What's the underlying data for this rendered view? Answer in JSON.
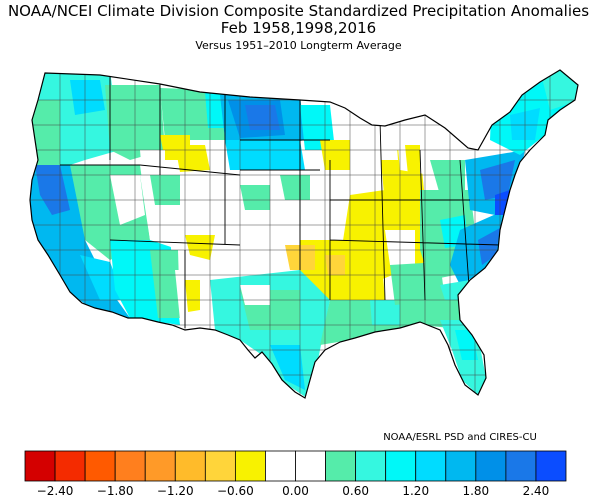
{
  "title": "NOAA/NCEI Climate Division Composite Standardized Precipitation Anomalies",
  "subtitle": "Feb   1958,1998,2016",
  "subtitle2": "Versus 1951–2010 Longterm Average",
  "credit": "NOAA/ESRL PSD and CIRES-CU",
  "legend": {
    "colors": [
      "#d40000",
      "#f42b00",
      "#ff5a00",
      "#ff7f1e",
      "#ff9a28",
      "#ffbb2a",
      "#ffd53a",
      "#f8f200",
      "#ffffff",
      "#ffffff",
      "#55ecaa",
      "#35f7e0",
      "#00f8f8",
      "#00dcff",
      "#00b8f0",
      "#0090e8",
      "#1a78e8",
      "#0b4dff"
    ],
    "ticks": [
      "−2.40",
      "−1.80",
      "−1.20",
      "−0.60",
      "0.00",
      "0.60",
      "1.20",
      "1.80",
      "2.40"
    ]
  },
  "map": {
    "region": "Contiguous United States",
    "wet_regions": [
      {
        "name": "pacific-northwest",
        "level": "0.6-1.2"
      },
      {
        "name": "california-coast",
        "level": "1.8-2.4"
      },
      {
        "name": "northern-plains",
        "level": "1.8-2.4+"
      },
      {
        "name": "southeast-coast",
        "level": "1.2-2.4"
      },
      {
        "name": "mid-atlantic",
        "level": "1.8-2.4"
      },
      {
        "name": "new-england",
        "level": "0.6-1.2"
      },
      {
        "name": "texas",
        "level": "0.6-1.2"
      },
      {
        "name": "florida",
        "level": "0.6-1.2"
      },
      {
        "name": "gulf-coast",
        "level": "0.6-1.2"
      }
    ],
    "dry_regions": [
      {
        "name": "midwest",
        "level": "-0.6-0"
      },
      {
        "name": "oklahoma-arkansas",
        "level": "-0.6-0"
      },
      {
        "name": "montana-wyoming",
        "level": "-0.6-0"
      },
      {
        "name": "southwest-patches",
        "level": "-0.6-0"
      }
    ]
  }
}
